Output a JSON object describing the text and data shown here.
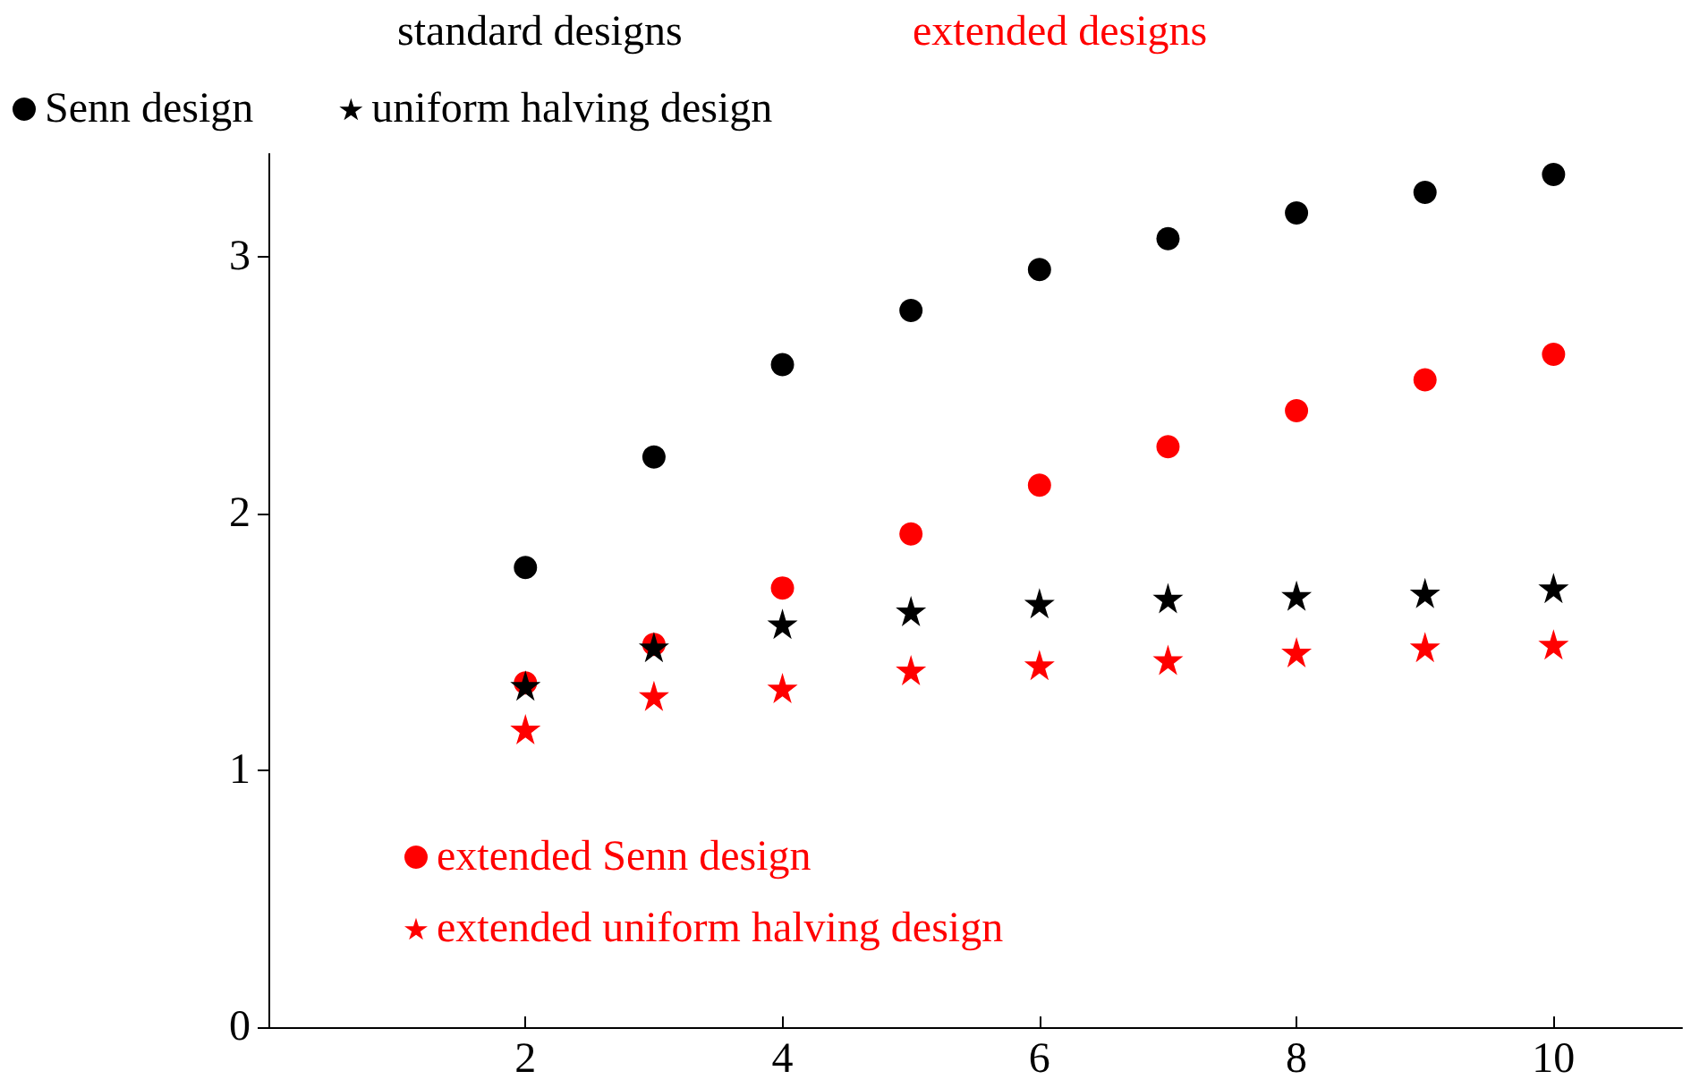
{
  "chart_data": {
    "type": "scatter",
    "x": [
      2,
      3,
      4,
      5,
      6,
      7,
      8,
      9,
      10
    ],
    "series": [
      {
        "name": "Senn design",
        "color": "#000000",
        "marker": "circle",
        "values": [
          1.79,
          2.22,
          2.58,
          2.79,
          2.95,
          3.07,
          3.17,
          3.25,
          3.32
        ]
      },
      {
        "name": "uniform halving design",
        "color": "#000000",
        "marker": "star",
        "values": [
          1.33,
          1.48,
          1.57,
          1.62,
          1.65,
          1.67,
          1.68,
          1.69,
          1.71
        ]
      },
      {
        "name": "extended Senn design",
        "color": "#ff0000",
        "marker": "circle",
        "values": [
          1.34,
          1.49,
          1.71,
          1.92,
          2.11,
          2.26,
          2.4,
          2.52,
          2.62
        ]
      },
      {
        "name": "extended uniform halving design",
        "color": "#ff0000",
        "marker": "star",
        "values": [
          1.16,
          1.29,
          1.32,
          1.39,
          1.41,
          1.43,
          1.46,
          1.48,
          1.49
        ]
      }
    ],
    "annotations": [
      "standard designs",
      "extended designs"
    ],
    "xlim": [
      0,
      11
    ],
    "xticks": [
      2,
      4,
      6,
      8,
      10
    ],
    "ylim": [
      0,
      3.4
    ],
    "yticks": [
      0,
      1,
      2,
      3
    ],
    "grid": false,
    "legend": "top left"
  }
}
